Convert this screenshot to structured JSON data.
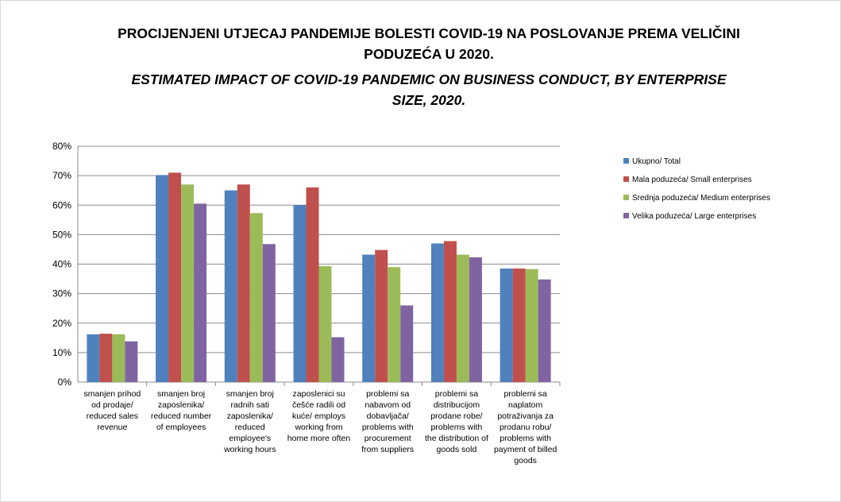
{
  "chart_data": {
    "type": "bar",
    "title": "PROCIJENJENI UTJECAJ PANDEMIJE BOLESTI COVID-19 NA POSLOVANJE PREMA VELIČINI PODUZEĆA U 2020.",
    "subtitle": "ESTIMATED IMPACT OF COVID-19 PANDEMIC ON BUSINESS CONDUCT, BY ENTERPRISE SIZE, 2020.",
    "categories": [
      "smanjen prihod od prodaje/ reduced sales revenue",
      "smanjen broj zaposlenika/ reduced number of employees",
      "smanjen broj radnih sati zaposlenika/ reduced employee's working hours",
      "zaposlenici su češće radili od kuće/ employs working from home more often",
      "problemi sa nabavom od dobavljača/ problems with procurement from suppliers",
      "problemi sa distribucijom prodane robe/ problems with the distribution of goods sold",
      "problemi sa naplatom potraživanja za prodanu robu/ problems with payment of billed goods"
    ],
    "series": [
      {
        "name": "Ukupno/ Total",
        "color": "#4f81bd",
        "values": [
          16.2,
          70.2,
          65.0,
          60.0,
          43.2,
          47.0,
          38.5
        ]
      },
      {
        "name": "Mala poduzeća/ Small enterprises",
        "color": "#c0504d",
        "values": [
          16.4,
          71.0,
          67.0,
          66.0,
          44.8,
          47.8,
          38.5
        ]
      },
      {
        "name": "Srednja poduzeća/ Medium enterprises",
        "color": "#9bbb59",
        "values": [
          16.2,
          67.0,
          57.3,
          39.3,
          39.0,
          43.2,
          38.3
        ]
      },
      {
        "name": "Velika poduzeća/ Large enterprises",
        "color": "#8064a2",
        "values": [
          13.8,
          60.5,
          46.8,
          15.2,
          26.0,
          42.3,
          34.8
        ]
      }
    ],
    "ylim": [
      0,
      80
    ],
    "yticks": [
      {
        "value": 0,
        "label": "0%"
      },
      {
        "value": 10,
        "label": "10%"
      },
      {
        "value": 20,
        "label": "20%"
      },
      {
        "value": 30,
        "label": "30%"
      },
      {
        "value": 40,
        "label": "40%"
      },
      {
        "value": 50,
        "label": "50%"
      },
      {
        "value": 60,
        "label": "60%"
      },
      {
        "value": 70,
        "label": "70%"
      },
      {
        "value": 80,
        "label": "80%"
      }
    ],
    "grid": true,
    "legend": "right"
  }
}
